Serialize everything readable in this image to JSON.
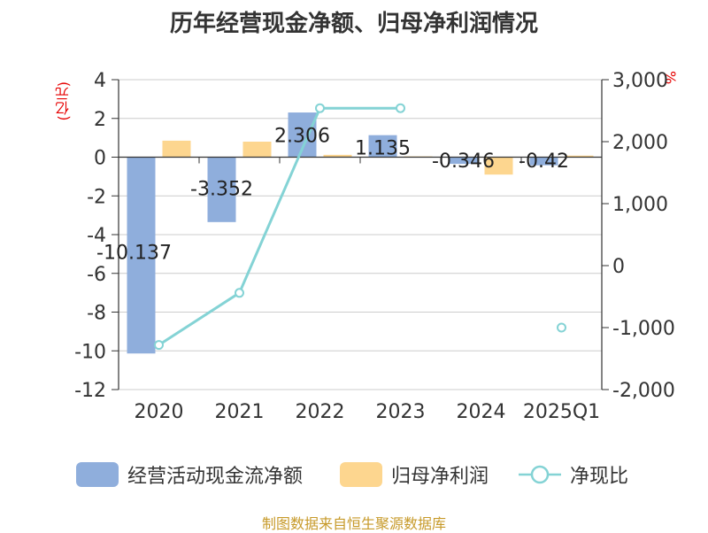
{
  "title": "历年经营现金净额、归母净利润情况",
  "unit_left": "(亿元)",
  "unit_right": "%",
  "source": "制图数据来自恒生聚源数据库",
  "colors": {
    "cash": "#8faedc",
    "profit": "#fdd68f",
    "ratio": "#84d3d5",
    "unit": "#e60000",
    "source": "#c79a2a"
  },
  "legend": [
    {
      "label": "经营活动现金流净额",
      "kind": "bar",
      "color": "#8faedc"
    },
    {
      "label": "归母净利润",
      "kind": "bar",
      "color": "#fdd68f"
    },
    {
      "label": "净现比",
      "kind": "line",
      "color": "#84d3d5"
    }
  ],
  "chart_data": {
    "type": "bar",
    "categories": [
      "2020",
      "2021",
      "2022",
      "2023",
      "2024",
      "2025Q1"
    ],
    "y_left": {
      "min": -12,
      "max": 4,
      "step": 2,
      "ticks": [
        "4",
        "2",
        "0",
        "-2",
        "-4",
        "-6",
        "-8",
        "-10",
        "-12"
      ]
    },
    "y_right": {
      "min": -2000,
      "max": 3000,
      "step": 1000,
      "ticks": [
        "3,000",
        "2,000",
        "1,000",
        "0",
        "-1,000",
        "-2,000"
      ]
    },
    "series": [
      {
        "name": "经营活动现金流净额",
        "type": "bar",
        "axis": "left",
        "values": [
          -10.137,
          -3.352,
          2.306,
          1.135,
          -0.346,
          -0.42
        ],
        "labels": [
          "-10.137",
          "-3.352",
          "2.306",
          "1.135",
          "-0.346",
          "-0.42"
        ]
      },
      {
        "name": "归母净利润",
        "type": "bar",
        "axis": "left",
        "values": [
          0.85,
          0.8,
          0.12,
          0.04,
          -0.9,
          0.08
        ]
      },
      {
        "name": "净现比",
        "type": "line",
        "axis": "right",
        "values": [
          -1280,
          -440,
          2540,
          2540,
          null,
          -1000
        ]
      }
    ],
    "grid": true
  }
}
